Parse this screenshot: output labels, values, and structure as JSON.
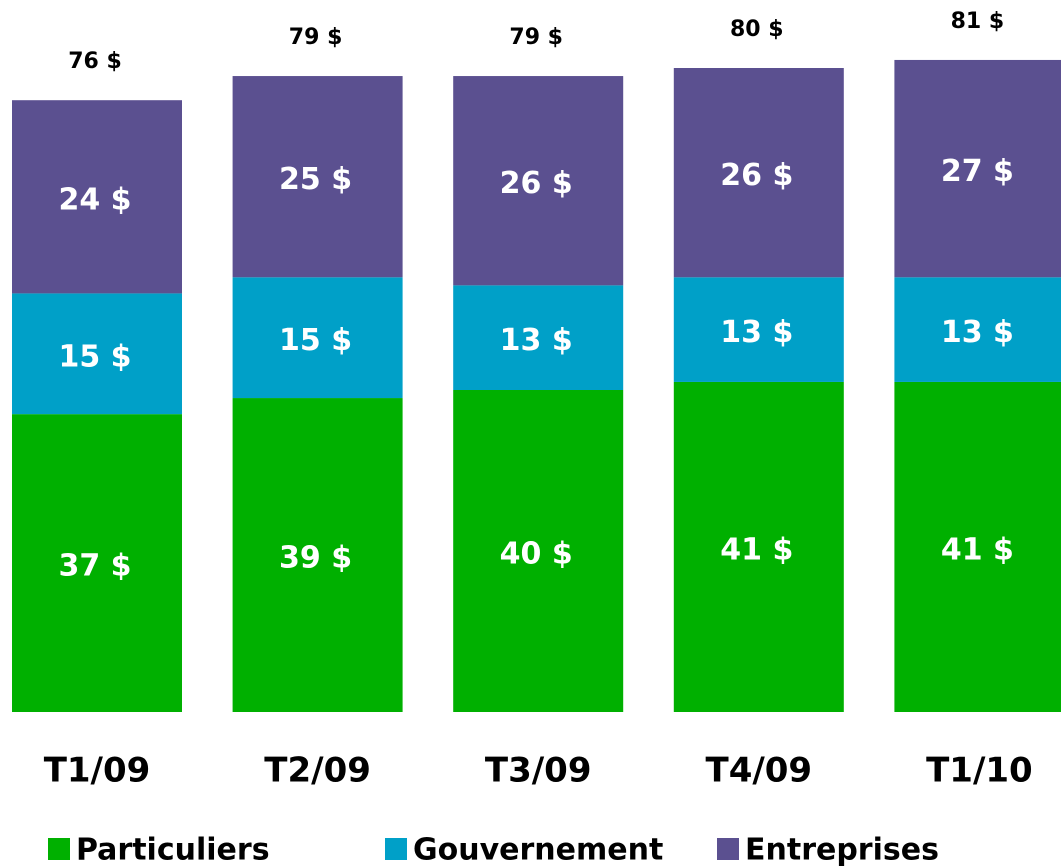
{
  "chart_data": {
    "type": "stacked_bar",
    "categories": [
      "T1/09",
      "T2/09",
      "T3/09",
      "T4/09",
      "T1/10"
    ],
    "series": [
      {
        "name": "Particuliers",
        "color": "#00b000",
        "values": [
          37,
          39,
          40,
          41,
          41
        ],
        "value_labels": [
          "37 $",
          "39 $",
          "40 $",
          "41 $",
          "41 $"
        ]
      },
      {
        "name": "Gouvernement",
        "color": "#00a0c8",
        "values": [
          15,
          15,
          13,
          13,
          13
        ],
        "value_labels": [
          "15 $",
          "15 $",
          "13 $",
          "13 $",
          "13 $"
        ]
      },
      {
        "name": "Entreprises",
        "color": "#5b5090",
        "values": [
          24,
          25,
          26,
          26,
          27
        ],
        "value_labels": [
          "24 $",
          "25 $",
          "26 $",
          "26 $",
          "27 $"
        ]
      }
    ],
    "totals": [
      76,
      79,
      79,
      80,
      81
    ],
    "totals_labels": [
      "76 $",
      "79 $",
      "79 $",
      "80 $",
      "81 $"
    ]
  }
}
